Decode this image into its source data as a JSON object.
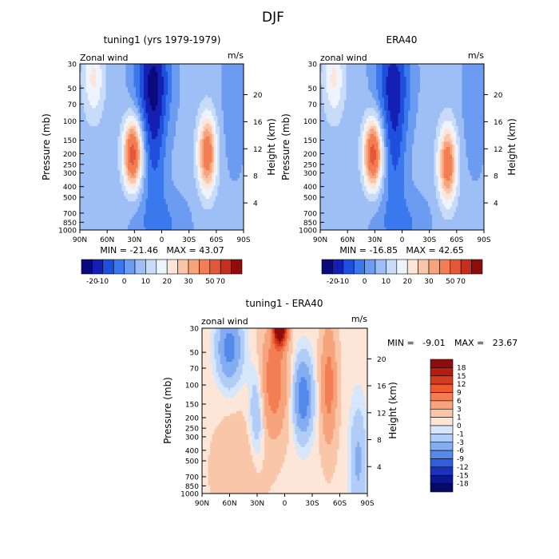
{
  "figure": {
    "title": "DJF"
  },
  "chart_data": [
    {
      "type": "heatmap",
      "title": "tuning1 (yrs 1979-1979)",
      "subtitle_left": "Zonal wind",
      "units": "m/s",
      "ylabel": "Pressure (mb)",
      "ylabel_right": "Height (km)",
      "ylog": true,
      "x_ticks": [
        "90N",
        "60N",
        "30N",
        "0",
        "30S",
        "60S",
        "90S"
      ],
      "y_ticks": [
        "30",
        "50",
        "70",
        "100",
        "150",
        "200",
        "250",
        "300",
        "400",
        "500",
        "700",
        "850",
        "1000"
      ],
      "y_right_ticks": [
        "4",
        "8",
        "12",
        "16",
        "20"
      ],
      "stats": "MIN = -21.46   MAX = 43.07",
      "colorbar_labels": [
        "-20",
        "-10",
        "0",
        "10",
        "20",
        "30",
        "50",
        "70"
      ],
      "jets": [
        {
          "lat": 32,
          "p": 200,
          "peak": 43
        },
        {
          "lat": -50,
          "p": 200,
          "peak": 35
        },
        {
          "lat": 10,
          "p": 40,
          "peak": -21
        }
      ],
      "grid": false
    },
    {
      "type": "heatmap",
      "title": "ERA40",
      "subtitle_left": "zonal wind",
      "units": "m/s",
      "ylabel": "Pressure (mb)",
      "ylabel_right": "Height (km)",
      "ylog": true,
      "x_ticks": [
        "90N",
        "60N",
        "30N",
        "0",
        "30S",
        "60S",
        "90S"
      ],
      "y_ticks": [
        "30",
        "50",
        "70",
        "100",
        "150",
        "200",
        "250",
        "300",
        "400",
        "500",
        "700",
        "850",
        "1000"
      ],
      "y_right_ticks": [
        "4",
        "8",
        "12",
        "16",
        "20"
      ],
      "stats": "MIN = -16.85   MAX = 42.65",
      "colorbar_labels": [
        "-20",
        "-10",
        "0",
        "10",
        "20",
        "30",
        "50",
        "70"
      ],
      "jets": [
        {
          "lat": 32,
          "p": 200,
          "peak": 42.65
        },
        {
          "lat": -50,
          "p": 250,
          "peak": 35
        },
        {
          "lat": 10,
          "p": 40,
          "peak": -16.85
        }
      ],
      "grid": false
    },
    {
      "type": "heatmap",
      "title": "tuning1 - ERA40",
      "subtitle_left": "zonal wind",
      "units": "m/s",
      "ylabel": "Pressure (mb)",
      "ylabel_right": "Height (km)",
      "ylog": true,
      "x_ticks": [
        "90N",
        "60N",
        "30N",
        "0",
        "30S",
        "60S",
        "90S"
      ],
      "y_ticks": [
        "30",
        "50",
        "70",
        "100",
        "150",
        "200",
        "250",
        "300",
        "400",
        "500",
        "700",
        "850",
        "1000"
      ],
      "y_right_ticks": [
        "4",
        "8",
        "12",
        "16",
        "20"
      ],
      "stats_min": "MIN =   -9.01",
      "stats_max": "MAX =   23.67",
      "colorbar_labels": [
        "18",
        "15",
        "12",
        "9",
        "6",
        "3",
        "1",
        "0",
        "-1",
        "-3",
        "-6",
        "-9",
        "-12",
        "-15",
        "-18"
      ],
      "grid": false
    }
  ],
  "colors": {
    "full": [
      "#0a0a7d",
      "#1420b4",
      "#1f4fdc",
      "#3a78ee",
      "#6b9cf2",
      "#9dbff6",
      "#c8dcfa",
      "#eef4fd",
      "#fde6d8",
      "#f9c6a9",
      "#f7a47c",
      "#f47e54",
      "#e4583a",
      "#c3301f",
      "#8e0c0c"
    ],
    "diff": [
      "#8e0c0c",
      "#b41e12",
      "#d43c1f",
      "#ef5b30",
      "#f47e54",
      "#f7a47c",
      "#f9c6a9",
      "#fde6d8",
      "#d6e6fb",
      "#b1cdf7",
      "#83acf1",
      "#5589ea",
      "#2f5fde",
      "#1b33bb",
      "#0c168f",
      "#060a66"
    ]
  }
}
